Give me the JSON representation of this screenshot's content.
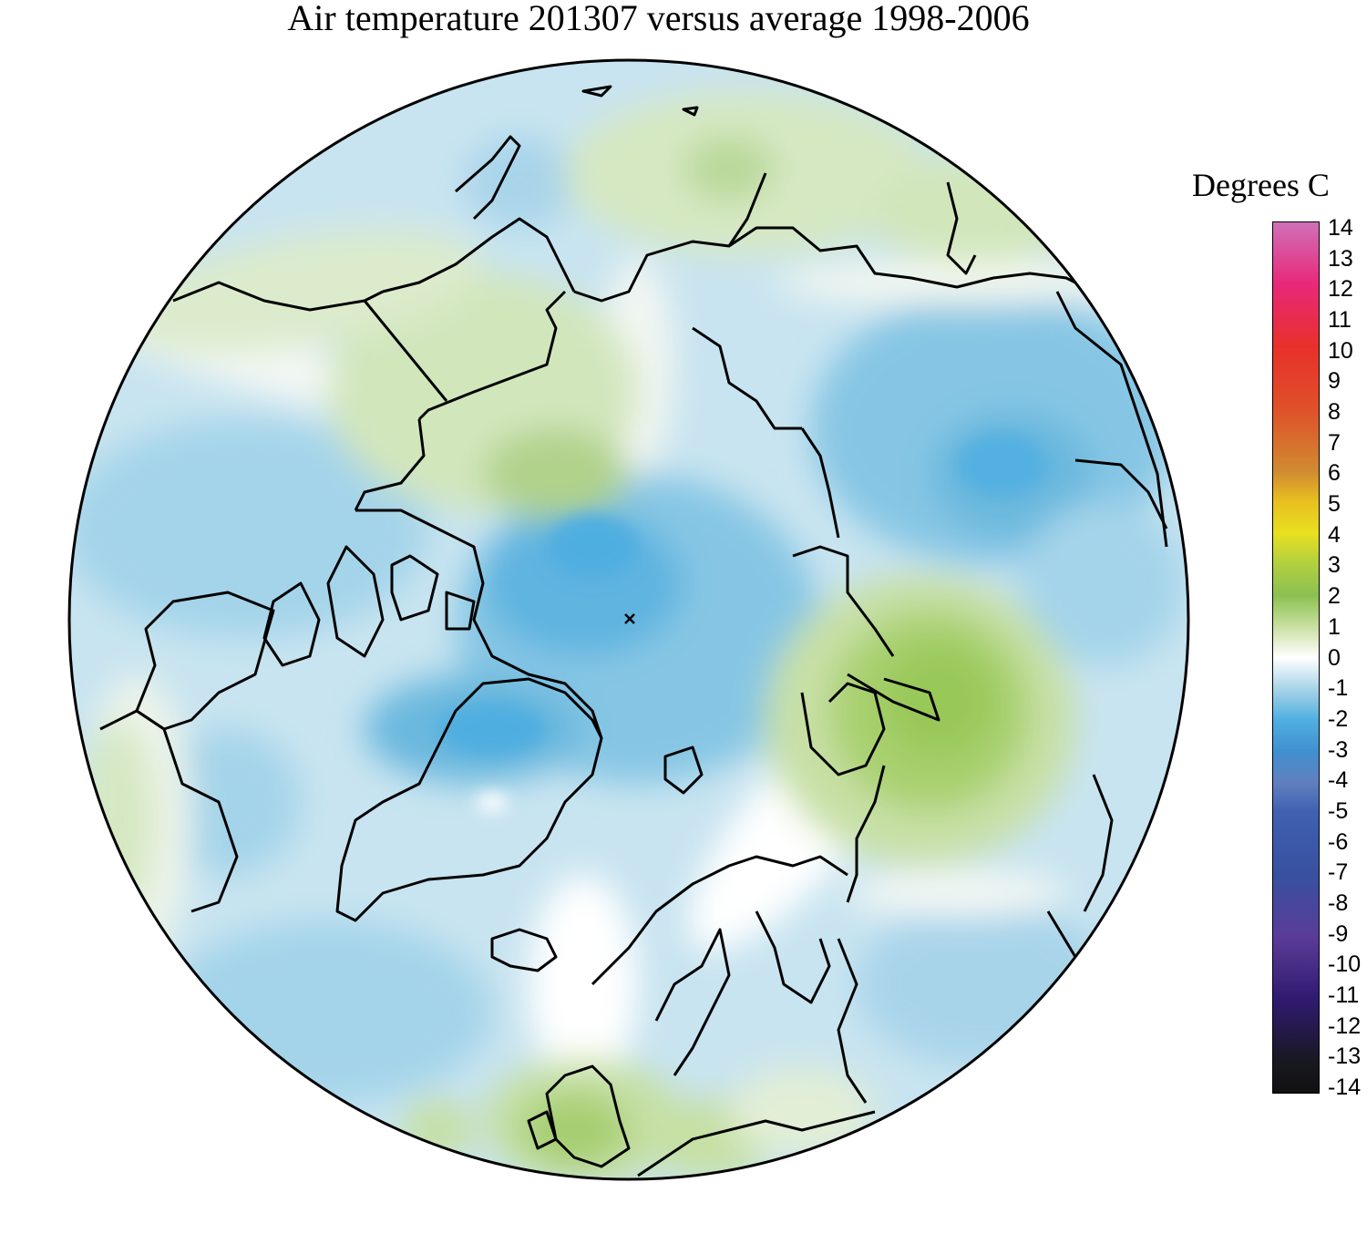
{
  "title": "Air temperature 201307 versus average 1998-2006",
  "legend": {
    "title": "Degrees C",
    "ticks": [
      "14",
      "13",
      "12",
      "11",
      "10",
      "9",
      "8",
      "7",
      "6",
      "5",
      "4",
      "3",
      "2",
      "1",
      "0",
      "-1",
      "-2",
      "-3",
      "-4",
      "-5",
      "-6",
      "-7",
      "-8",
      "-9",
      "-10",
      "-11",
      "-12",
      "-13",
      "-14"
    ],
    "range": [
      -14,
      14
    ],
    "color_stops": [
      {
        "value": 14,
        "color": "#d070b8"
      },
      {
        "value": 12,
        "color": "#e8287a"
      },
      {
        "value": 10,
        "color": "#e8302a"
      },
      {
        "value": 8,
        "color": "#e0502a"
      },
      {
        "value": 6,
        "color": "#d08a30"
      },
      {
        "value": 5,
        "color": "#e8c020"
      },
      {
        "value": 4,
        "color": "#e8e020"
      },
      {
        "value": 3,
        "color": "#b0d040"
      },
      {
        "value": 2,
        "color": "#8cc050"
      },
      {
        "value": 1,
        "color": "#c8e0a0"
      },
      {
        "value": 0,
        "color": "#ffffff"
      },
      {
        "value": -1,
        "color": "#a8d4e8"
      },
      {
        "value": -2,
        "color": "#50b0e0"
      },
      {
        "value": -3,
        "color": "#4090d0"
      },
      {
        "value": -4,
        "color": "#6080c0"
      },
      {
        "value": -5,
        "color": "#4060b0"
      },
      {
        "value": -7,
        "color": "#3850a0"
      },
      {
        "value": -9,
        "color": "#5a3c98"
      },
      {
        "value": -11,
        "color": "#301a70"
      },
      {
        "value": -13,
        "color": "#181820"
      },
      {
        "value": -14,
        "color": "#111111"
      }
    ]
  },
  "map": {
    "projection": "north polar stereographic",
    "anomaly_colors": {
      "light_blue": "#c6e4f0",
      "mid_blue": "#94cce4",
      "blue": "#6ab8de",
      "deep_blue": "#50aee0",
      "pale_green": "#e4eed6",
      "light_green": "#c6deaa",
      "green": "#a8ce78",
      "deep_green": "#8ec248"
    }
  }
}
